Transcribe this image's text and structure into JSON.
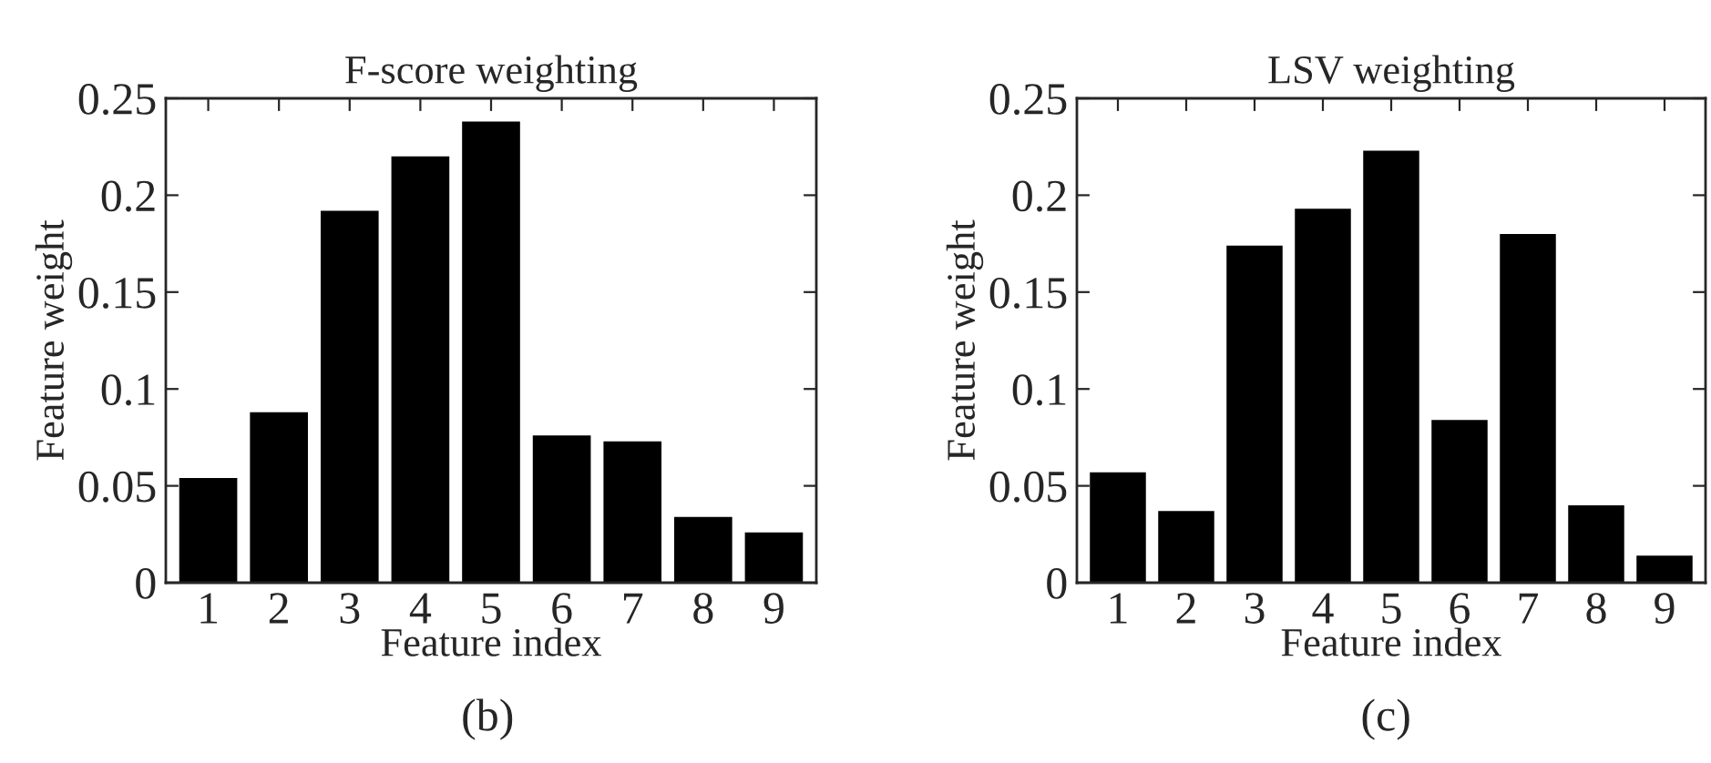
{
  "chart_data": [
    {
      "type": "bar",
      "title": "F-score weighting",
      "xlabel": "Feature index",
      "ylabel": "Feature weight",
      "categories": [
        "1",
        "2",
        "3",
        "4",
        "5",
        "6",
        "7",
        "8",
        "9"
      ],
      "values": [
        0.054,
        0.088,
        0.192,
        0.22,
        0.238,
        0.076,
        0.073,
        0.034,
        0.026
      ],
      "color": "#000000",
      "ylim": [
        0,
        0.25
      ],
      "yticks": [
        0,
        0.05,
        0.1,
        0.15,
        0.2,
        0.25
      ],
      "annotations": [
        "(b)"
      ]
    },
    {
      "type": "bar",
      "title": "LSV weighting",
      "xlabel": "Feature index",
      "ylabel": "Feature weight",
      "categories": [
        "1",
        "2",
        "3",
        "4",
        "5",
        "6",
        "7",
        "8",
        "9"
      ],
      "values": [
        0.057,
        0.037,
        0.174,
        0.193,
        0.223,
        0.084,
        0.18,
        0.04,
        0.014
      ],
      "color": "#000000",
      "ylim": [
        0,
        0.25
      ],
      "yticks": [
        0,
        0.05,
        0.1,
        0.15,
        0.2,
        0.25
      ],
      "annotations": [
        "(c)"
      ]
    }
  ]
}
